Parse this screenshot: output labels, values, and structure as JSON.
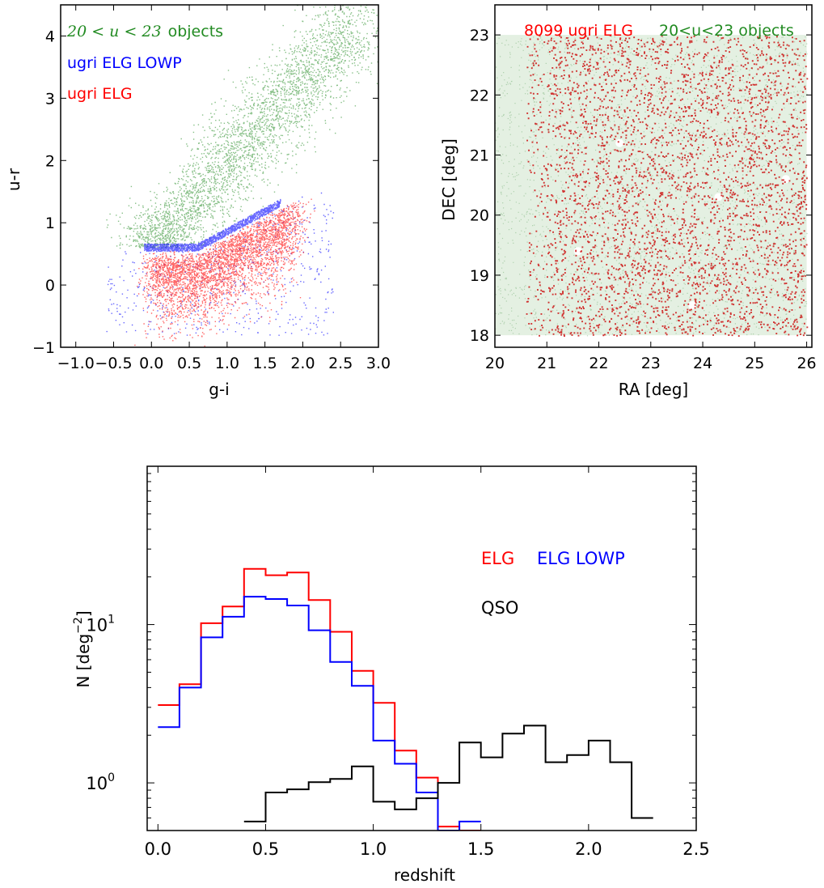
{
  "chart_data": [
    {
      "type": "scatter",
      "xlabel": "g-i",
      "ylabel": "u-r",
      "xlim": [
        -1.2,
        3.0
      ],
      "ylim": [
        -1.0,
        4.5
      ],
      "xticks": [
        -1.0,
        -0.5,
        0.0,
        0.5,
        1.0,
        1.5,
        2.0,
        2.5,
        3.0
      ],
      "xtick_labels": [
        "−1.0",
        "−0.5",
        "0.0",
        "0.5",
        "1.0",
        "1.5",
        "2.0",
        "2.5",
        "3.0"
      ],
      "yticks": [
        -1,
        0,
        1,
        2,
        3,
        4
      ],
      "ytick_labels": [
        "−1",
        "0",
        "1",
        "2",
        "3",
        "4"
      ],
      "legend_placement": "top-left",
      "series": [
        {
          "name": "20 < u < 23 objects",
          "color": "#228b22",
          "description": "broad cloud rising from (g-i,u-r)≈(0,0.5) to (2.7,4.2)"
        },
        {
          "name": "ugri ELG LOWP",
          "color": "#0000ff",
          "description": "thin band along u-r≈0.5–1.6 boundary"
        },
        {
          "name": "ugri ELG",
          "color": "#ff0000",
          "description": "wedge below the boundary, u-r ≈ -0.5–1.3"
        }
      ],
      "legend": {
        "l1_math": "20 < u < 23",
        "l1_text": "objects",
        "l2": "ugri ELG LOWP",
        "l3": "ugri ELG"
      }
    },
    {
      "type": "scatter",
      "xlabel": "RA [deg]",
      "ylabel": "DEC [deg]",
      "xlim": [
        20,
        26.1
      ],
      "ylim": [
        17.8,
        23.5
      ],
      "xticks": [
        20,
        21,
        22,
        23,
        24,
        25,
        26
      ],
      "xtick_labels": [
        "20",
        "21",
        "22",
        "23",
        "24",
        "25",
        "26"
      ],
      "yticks": [
        18,
        19,
        20,
        21,
        22,
        23
      ],
      "ytick_labels": [
        "18",
        "19",
        "20",
        "21",
        "22",
        "23"
      ],
      "legend_placement": "top",
      "series": [
        {
          "name": "20<u<23 objects",
          "color": "#228b22",
          "region": {
            "ra": [
              20,
              26
            ],
            "dec": [
              18,
              23
            ]
          }
        },
        {
          "name": "8099 ugri ELG",
          "color": "#ff0000",
          "count": 8099,
          "region": {
            "ra": [
              20.6,
              26
            ],
            "dec": [
              18,
              23
            ]
          }
        }
      ],
      "title_red": "8099 ugri ELG",
      "title_green": "20<u<23 objects"
    },
    {
      "type": "line",
      "step": true,
      "xlabel": "redshift",
      "ylabel": "N [deg",
      "ylabel_sup": "−2",
      "ylabel_close": "]",
      "yscale": "log",
      "xlim": [
        -0.05,
        2.5
      ],
      "ylim": [
        0.5,
        100
      ],
      "xticks": [
        0.0,
        0.5,
        1.0,
        1.5,
        2.0,
        2.5
      ],
      "xtick_labels": [
        "0.0",
        "0.5",
        "1.0",
        "1.5",
        "2.0",
        "2.5"
      ],
      "yticks_major": [
        1,
        10
      ],
      "ytick_labels": {
        "base": "10",
        "exps": [
          "0",
          "1"
        ]
      },
      "bin_edges": [
        0.0,
        0.1,
        0.2,
        0.3,
        0.4,
        0.5,
        0.6,
        0.7,
        0.8,
        0.9,
        1.0,
        1.1,
        1.2,
        1.3,
        1.4,
        1.5,
        1.6,
        1.7,
        1.8,
        1.9,
        2.0,
        2.1,
        2.2,
        2.3
      ],
      "series": [
        {
          "name": "ELG",
          "color": "#ff0000",
          "values": [
            3.1,
            4.2,
            10.2,
            13.0,
            22.5,
            20.5,
            21.3,
            14.3,
            9.0,
            5.1,
            3.2,
            1.6,
            1.08,
            0.53,
            0.5
          ]
        },
        {
          "name": "ELG LOWP",
          "color": "#0000ff",
          "values": [
            2.25,
            4.0,
            8.3,
            11.2,
            15.0,
            14.5,
            13.2,
            9.2,
            5.8,
            4.1,
            1.85,
            1.32,
            0.87,
            0.5,
            0.57
          ]
        },
        {
          "name": "QSO",
          "color": "#000000",
          "x_start": 0.4,
          "values": [
            0.57,
            0.87,
            0.91,
            1.01,
            1.06,
            1.27,
            0.76,
            0.68,
            0.8,
            1.0,
            1.8,
            1.45,
            2.05,
            2.3,
            1.35,
            1.5,
            1.85,
            1.35,
            0.6
          ]
        }
      ],
      "legend": {
        "elg": "ELG",
        "lowp": "ELG LOWP",
        "qso": "QSO"
      }
    }
  ]
}
